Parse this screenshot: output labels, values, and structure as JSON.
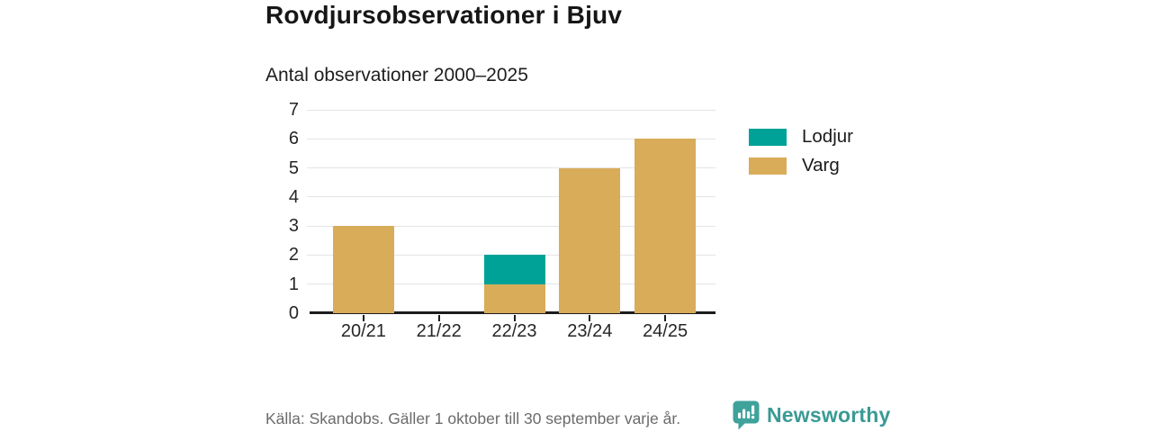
{
  "header": {
    "title": "Rovdjursobservationer i Bjuv",
    "subtitle": "Antal observationer 2000–2025"
  },
  "chart_data": {
    "type": "bar",
    "stacked": true,
    "title": "Rovdjursobservationer i Bjuv",
    "subtitle": "Antal observationer 2000–2025",
    "xlabel": "",
    "ylabel": "",
    "categories": [
      "20/21",
      "21/22",
      "22/23",
      "23/24",
      "24/25"
    ],
    "series": [
      {
        "name": "Varg",
        "color": "#d9ac5a",
        "values": [
          3,
          0,
          1,
          5,
          6
        ]
      },
      {
        "name": "Lodjur",
        "color": "#00a297",
        "values": [
          0,
          0,
          1,
          0,
          0
        ]
      }
    ],
    "totals": [
      3,
      0,
      2,
      5,
      6
    ],
    "ylim": [
      0,
      7
    ],
    "yticks": [
      0,
      1,
      2,
      3,
      4,
      5,
      6,
      7
    ],
    "grid": true,
    "legend_position": "right",
    "legend": [
      {
        "label": "Lodjur",
        "color": "#00a297"
      },
      {
        "label": "Varg",
        "color": "#d9ac5a"
      }
    ]
  },
  "footer": {
    "source": "Källa: Skandobs. Gäller 1 oktober till 30 september varje år.",
    "brand": "Newsworthy"
  },
  "colors": {
    "lodjur": "#00a297",
    "varg": "#d9ac5a",
    "axis": "#1c1c1c",
    "gridline": "#e4e4e4",
    "brand_teal": "#3a9a94",
    "footer_gray": "#6b6b6b"
  }
}
